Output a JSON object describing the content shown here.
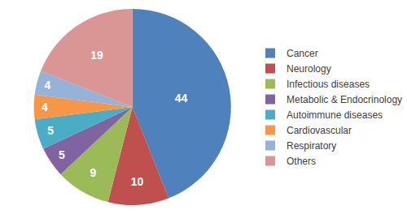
{
  "chart_data": {
    "type": "pie",
    "categories": [
      "Cancer",
      "Neurology",
      "Infectious diseases",
      "Metabolic & Endocrinology",
      "Autoimmune diseases",
      "Cardiovascular",
      "Respiratory",
      "Others"
    ],
    "values": [
      44,
      10,
      9,
      5,
      5,
      4,
      4,
      19
    ],
    "colors": [
      "#4f81bd",
      "#c0504d",
      "#9bbb59",
      "#8064a2",
      "#4bacc6",
      "#f79646",
      "#95b3d7",
      "#d99694"
    ],
    "data_labels": true,
    "legend": "right"
  }
}
